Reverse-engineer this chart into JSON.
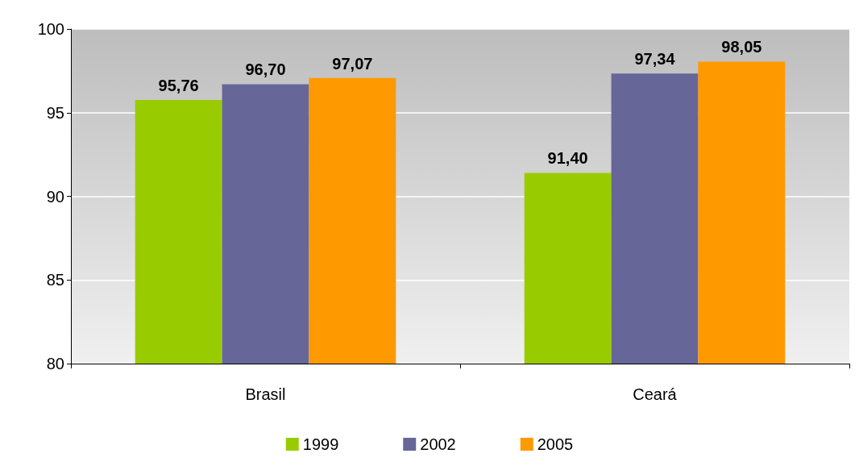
{
  "chart_data": {
    "type": "bar",
    "categories": [
      "Brasil",
      "Ceará"
    ],
    "series": [
      {
        "name": "1999",
        "color": "#99cc00",
        "values": [
          95.76,
          91.4
        ],
        "value_labels": [
          "95,76",
          "91,40"
        ]
      },
      {
        "name": "2002",
        "color": "#666699",
        "values": [
          96.7,
          97.34
        ],
        "value_labels": [
          "96,70",
          "97,34"
        ]
      },
      {
        "name": "2005",
        "color": "#ff9900",
        "values": [
          97.07,
          98.05
        ],
        "value_labels": [
          "97,07",
          "98,05"
        ]
      }
    ],
    "ylim": [
      80,
      100
    ],
    "yticks": [
      80,
      85,
      90,
      95,
      100
    ],
    "grid": "y",
    "legend": "bottom"
  }
}
